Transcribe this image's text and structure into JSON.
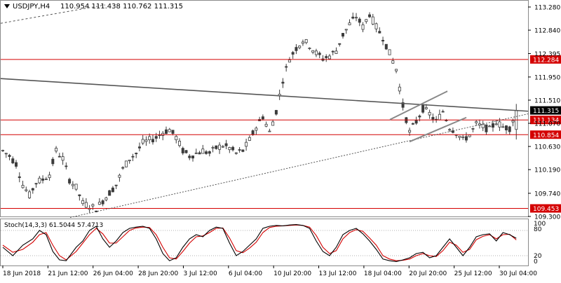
{
  "header": {
    "arrow_icon": "dropdown-triangle-icon",
    "symbol": "USDJPY,H4",
    "ohlc": "110.954 111.438 110.762 111.315"
  },
  "oscillator": {
    "label": "Stoch(14,3,3) 61.5044 57.4713",
    "right_labels": [
      "100",
      "80",
      "20",
      "0"
    ]
  },
  "chart_data": [
    {
      "type": "candlestick",
      "symbol": "USDJPY",
      "timeframe": "H4",
      "ohlc_last": {
        "open": 110.954,
        "high": 111.438,
        "low": 110.762,
        "close": 111.315
      },
      "ylim": [
        109.3,
        113.28
      ],
      "y_ticks": [
        113.28,
        112.84,
        112.395,
        111.95,
        111.51,
        111.07,
        110.63,
        110.19,
        109.74,
        109.3
      ],
      "y_tick_labels": [
        "113.280",
        "112.840",
        "112.395",
        "111.950",
        "111.510",
        "111.070",
        "110.630",
        "110.190",
        "109.740",
        "109.300"
      ],
      "x_tick_labels": [
        "18 Jun 2018",
        "21 Jun 12:00",
        "26 Jun 04:00",
        "28 Jun 20:00",
        "3 Jul 12:00",
        "6 Jul 04:00",
        "10 Jul 20:00",
        "13 Jul 12:00",
        "18 Jul 04:00",
        "20 Jul 20:00",
        "25 Jul 12:00",
        "30 Jul 04:00"
      ],
      "horizontal_levels": [
        {
          "value": 112.284,
          "label": "112.284",
          "color": "#d40000"
        },
        {
          "value": 111.134,
          "label": "111.134",
          "color": "#d40000"
        },
        {
          "value": 110.854,
          "label": "110.854",
          "color": "#d40000"
        },
        {
          "value": 109.453,
          "label": "109.453",
          "color": "#d40000"
        }
      ],
      "current_price": {
        "value": 111.315,
        "label": "111.315",
        "color": "#000000"
      },
      "trend_path": [
        [
          0,
          110.55
        ],
        [
          2,
          110.45
        ],
        [
          4,
          110.3
        ],
        [
          6,
          109.9
        ],
        [
          8,
          109.7
        ],
        [
          10,
          109.95
        ],
        [
          12,
          110.0
        ],
        [
          14,
          110.1
        ],
        [
          16,
          110.55
        ],
        [
          18,
          110.4
        ],
        [
          20,
          110.0
        ],
        [
          22,
          109.85
        ],
        [
          24,
          109.55
        ],
        [
          26,
          109.5
        ],
        [
          28,
          109.45
        ],
        [
          30,
          109.6
        ],
        [
          32,
          109.75
        ],
        [
          34,
          109.9
        ],
        [
          36,
          110.2
        ],
        [
          38,
          110.4
        ],
        [
          40,
          110.5
        ],
        [
          42,
          110.7
        ],
        [
          44,
          110.75
        ],
        [
          46,
          110.8
        ],
        [
          48,
          110.9
        ],
        [
          50,
          110.95
        ],
        [
          52,
          110.8
        ],
        [
          54,
          110.55
        ],
        [
          56,
          110.45
        ],
        [
          58,
          110.5
        ],
        [
          60,
          110.55
        ],
        [
          62,
          110.5
        ],
        [
          64,
          110.6
        ],
        [
          66,
          110.65
        ],
        [
          68,
          110.6
        ],
        [
          70,
          110.5
        ],
        [
          72,
          110.55
        ],
        [
          74,
          110.75
        ],
        [
          76,
          111.0
        ],
        [
          78,
          111.2
        ],
        [
          80,
          110.9
        ],
        [
          82,
          111.3
        ],
        [
          84,
          111.9
        ],
        [
          86,
          112.3
        ],
        [
          88,
          112.5
        ],
        [
          90,
          112.65
        ],
        [
          92,
          112.55
        ],
        [
          94,
          112.4
        ],
        [
          96,
          112.3
        ],
        [
          98,
          112.35
        ],
        [
          100,
          112.45
        ],
        [
          102,
          112.75
        ],
        [
          104,
          112.95
        ],
        [
          106,
          113.1
        ],
        [
          108,
          112.9
        ],
        [
          110,
          113.15
        ],
        [
          112,
          112.9
        ],
        [
          114,
          112.7
        ],
        [
          116,
          112.4
        ],
        [
          118,
          112.1
        ],
        [
          120,
          111.4
        ],
        [
          122,
          110.9
        ],
        [
          124,
          111.1
        ],
        [
          126,
          111.35
        ],
        [
          128,
          111.25
        ],
        [
          130,
          111.1
        ],
        [
          132,
          111.3
        ],
        [
          134,
          111.0
        ],
        [
          136,
          110.9
        ],
        [
          138,
          110.75
        ],
        [
          140,
          110.85
        ],
        [
          142,
          111.05
        ],
        [
          144,
          111.0
        ],
        [
          146,
          110.95
        ],
        [
          148,
          111.1
        ],
        [
          150,
          111.0
        ],
        [
          152,
          110.98
        ],
        [
          154,
          111.315
        ]
      ],
      "stochastic": {
        "name": "Stoch(14,3,3)",
        "main": 61.5044,
        "signal": 57.4713,
        "ylim": [
          0,
          100
        ],
        "levels": [
          80,
          20
        ],
        "main_path": [
          [
            0,
            40
          ],
          [
            3,
            20
          ],
          [
            6,
            45
          ],
          [
            9,
            60
          ],
          [
            11,
            80
          ],
          [
            13,
            70
          ],
          [
            15,
            30
          ],
          [
            17,
            10
          ],
          [
            19,
            8
          ],
          [
            22,
            40
          ],
          [
            24,
            55
          ],
          [
            26,
            80
          ],
          [
            28,
            90
          ],
          [
            30,
            60
          ],
          [
            32,
            40
          ],
          [
            34,
            55
          ],
          [
            36,
            75
          ],
          [
            38,
            85
          ],
          [
            40,
            88
          ],
          [
            42,
            90
          ],
          [
            44,
            85
          ],
          [
            46,
            60
          ],
          [
            48,
            25
          ],
          [
            50,
            8
          ],
          [
            52,
            15
          ],
          [
            54,
            40
          ],
          [
            56,
            60
          ],
          [
            58,
            70
          ],
          [
            60,
            65
          ],
          [
            62,
            80
          ],
          [
            64,
            88
          ],
          [
            66,
            85
          ],
          [
            68,
            50
          ],
          [
            70,
            20
          ],
          [
            72,
            30
          ],
          [
            74,
            45
          ],
          [
            76,
            60
          ],
          [
            78,
            85
          ],
          [
            80,
            90
          ],
          [
            82,
            92
          ],
          [
            84,
            91
          ],
          [
            86,
            93
          ],
          [
            88,
            94
          ],
          [
            90,
            92
          ],
          [
            92,
            85
          ],
          [
            94,
            55
          ],
          [
            96,
            30
          ],
          [
            98,
            20
          ],
          [
            100,
            40
          ],
          [
            102,
            70
          ],
          [
            104,
            80
          ],
          [
            106,
            85
          ],
          [
            108,
            72
          ],
          [
            110,
            55
          ],
          [
            112,
            35
          ],
          [
            114,
            12
          ],
          [
            116,
            8
          ],
          [
            118,
            6
          ],
          [
            120,
            10
          ],
          [
            122,
            15
          ],
          [
            124,
            25
          ],
          [
            126,
            28
          ],
          [
            128,
            15
          ],
          [
            130,
            20
          ],
          [
            132,
            40
          ],
          [
            134,
            60
          ],
          [
            136,
            40
          ],
          [
            138,
            20
          ],
          [
            140,
            40
          ],
          [
            142,
            65
          ],
          [
            144,
            70
          ],
          [
            146,
            72
          ],
          [
            148,
            55
          ],
          [
            150,
            75
          ],
          [
            152,
            70
          ],
          [
            154,
            61.5
          ]
        ],
        "signal_path": [
          [
            0,
            45
          ],
          [
            3,
            28
          ],
          [
            6,
            35
          ],
          [
            9,
            52
          ],
          [
            11,
            70
          ],
          [
            13,
            75
          ],
          [
            15,
            45
          ],
          [
            17,
            20
          ],
          [
            19,
            10
          ],
          [
            22,
            30
          ],
          [
            24,
            50
          ],
          [
            26,
            70
          ],
          [
            28,
            85
          ],
          [
            30,
            72
          ],
          [
            32,
            50
          ],
          [
            34,
            50
          ],
          [
            36,
            65
          ],
          [
            38,
            80
          ],
          [
            40,
            86
          ],
          [
            42,
            88
          ],
          [
            44,
            87
          ],
          [
            46,
            70
          ],
          [
            48,
            40
          ],
          [
            50,
            15
          ],
          [
            52,
            12
          ],
          [
            54,
            30
          ],
          [
            56,
            50
          ],
          [
            58,
            65
          ],
          [
            60,
            67
          ],
          [
            62,
            75
          ],
          [
            64,
            85
          ],
          [
            66,
            86
          ],
          [
            68,
            62
          ],
          [
            70,
            32
          ],
          [
            72,
            27
          ],
          [
            74,
            38
          ],
          [
            76,
            52
          ],
          [
            78,
            75
          ],
          [
            80,
            87
          ],
          [
            82,
            90
          ],
          [
            84,
            91
          ],
          [
            86,
            92
          ],
          [
            88,
            93
          ],
          [
            90,
            92
          ],
          [
            92,
            88
          ],
          [
            94,
            68
          ],
          [
            96,
            40
          ],
          [
            98,
            25
          ],
          [
            100,
            32
          ],
          [
            102,
            60
          ],
          [
            104,
            75
          ],
          [
            106,
            82
          ],
          [
            108,
            78
          ],
          [
            110,
            62
          ],
          [
            112,
            45
          ],
          [
            114,
            20
          ],
          [
            116,
            12
          ],
          [
            118,
            8
          ],
          [
            120,
            9
          ],
          [
            122,
            12
          ],
          [
            124,
            20
          ],
          [
            126,
            25
          ],
          [
            128,
            20
          ],
          [
            130,
            18
          ],
          [
            132,
            32
          ],
          [
            134,
            52
          ],
          [
            136,
            45
          ],
          [
            138,
            28
          ],
          [
            140,
            35
          ],
          [
            142,
            58
          ],
          [
            144,
            66
          ],
          [
            146,
            70
          ],
          [
            148,
            60
          ],
          [
            150,
            70
          ],
          [
            152,
            71
          ],
          [
            154,
            57.5
          ]
        ]
      },
      "colors": {
        "candle": "#3c3c3c",
        "level_line": "#d40000",
        "trend_line": "#555555",
        "channel_line": "#888888",
        "stoch_main": "#000000",
        "stoch_signal": "#d40000"
      }
    }
  ]
}
